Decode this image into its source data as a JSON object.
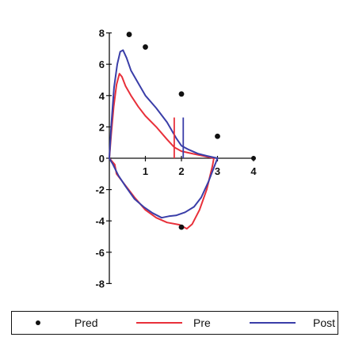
{
  "chart_data": {
    "type": "line",
    "title": "",
    "xlabel": "",
    "ylabel": "",
    "xlim": [
      0,
      4
    ],
    "ylim": [
      -8,
      8
    ],
    "x_ticks": [
      "1",
      "2",
      "3",
      "4"
    ],
    "y_ticks": [
      "8",
      "6",
      "4",
      "2",
      "0",
      "-2",
      "-4",
      "-6",
      "-8"
    ],
    "grid": false,
    "legend_position": "bottom",
    "series": [
      {
        "name": "Pred",
        "style": "points",
        "color": "#111111",
        "points": [
          [
            0.55,
            7.9
          ],
          [
            1.0,
            7.1
          ],
          [
            2.0,
            4.1
          ],
          [
            3.0,
            1.4
          ],
          [
            2.0,
            -4.4
          ]
        ]
      },
      {
        "name": "Pre",
        "style": "loop",
        "color": "#e8303a",
        "points": [
          [
            0.0,
            0.0
          ],
          [
            0.05,
            1.5
          ],
          [
            0.12,
            3.3
          ],
          [
            0.2,
            4.7
          ],
          [
            0.28,
            5.4
          ],
          [
            0.35,
            5.2
          ],
          [
            0.45,
            4.6
          ],
          [
            0.6,
            4.0
          ],
          [
            0.8,
            3.3
          ],
          [
            1.0,
            2.7
          ],
          [
            1.3,
            2.0
          ],
          [
            1.6,
            1.2
          ],
          [
            1.8,
            0.7
          ],
          [
            2.0,
            0.45
          ],
          [
            2.3,
            0.3
          ],
          [
            2.6,
            0.15
          ],
          [
            2.8,
            0.05
          ],
          [
            2.9,
            0.0
          ],
          [
            2.86,
            -0.5
          ],
          [
            2.7,
            -2.0
          ],
          [
            2.5,
            -3.3
          ],
          [
            2.3,
            -4.2
          ],
          [
            2.15,
            -4.5
          ],
          [
            1.95,
            -4.25
          ],
          [
            1.6,
            -4.1
          ],
          [
            1.3,
            -3.8
          ],
          [
            1.0,
            -3.3
          ],
          [
            0.7,
            -2.5
          ],
          [
            0.4,
            -1.6
          ],
          [
            0.2,
            -1.0
          ],
          [
            0.15,
            -0.4
          ],
          [
            0.0,
            0.0
          ]
        ]
      },
      {
        "name": "Post",
        "style": "loop",
        "color": "#3a3ea8",
        "points": [
          [
            0.0,
            0.0
          ],
          [
            0.05,
            2.0
          ],
          [
            0.13,
            4.5
          ],
          [
            0.22,
            6.0
          ],
          [
            0.3,
            6.8
          ],
          [
            0.38,
            6.9
          ],
          [
            0.48,
            6.4
          ],
          [
            0.6,
            5.6
          ],
          [
            0.8,
            4.8
          ],
          [
            1.0,
            4.0
          ],
          [
            1.3,
            3.2
          ],
          [
            1.6,
            2.3
          ],
          [
            1.85,
            1.3
          ],
          [
            2.0,
            0.8
          ],
          [
            2.2,
            0.55
          ],
          [
            2.45,
            0.3
          ],
          [
            2.7,
            0.15
          ],
          [
            2.9,
            0.05
          ],
          [
            3.0,
            0.0
          ],
          [
            2.9,
            -0.6
          ],
          [
            2.75,
            -1.5
          ],
          [
            2.55,
            -2.5
          ],
          [
            2.35,
            -3.1
          ],
          [
            2.1,
            -3.45
          ],
          [
            1.85,
            -3.65
          ],
          [
            1.65,
            -3.7
          ],
          [
            1.45,
            -3.8
          ],
          [
            1.2,
            -3.5
          ],
          [
            0.95,
            -3.1
          ],
          [
            0.7,
            -2.6
          ],
          [
            0.45,
            -1.8
          ],
          [
            0.25,
            -1.1
          ],
          [
            0.1,
            -0.4
          ],
          [
            0.0,
            0.0
          ]
        ]
      }
    ],
    "vertical_markers": [
      {
        "series": "Pre",
        "x": 1.8,
        "y_range": [
          0,
          2.6
        ]
      },
      {
        "series": "Post",
        "x": 2.05,
        "y_range": [
          0,
          2.6
        ]
      }
    ]
  },
  "legend": {
    "items": [
      {
        "label": "Pred",
        "kind": "dot",
        "color": "#111111"
      },
      {
        "label": "Pre",
        "kind": "line",
        "color": "#e8303a"
      },
      {
        "label": "Post",
        "kind": "line",
        "color": "#3a3ea8"
      }
    ]
  }
}
